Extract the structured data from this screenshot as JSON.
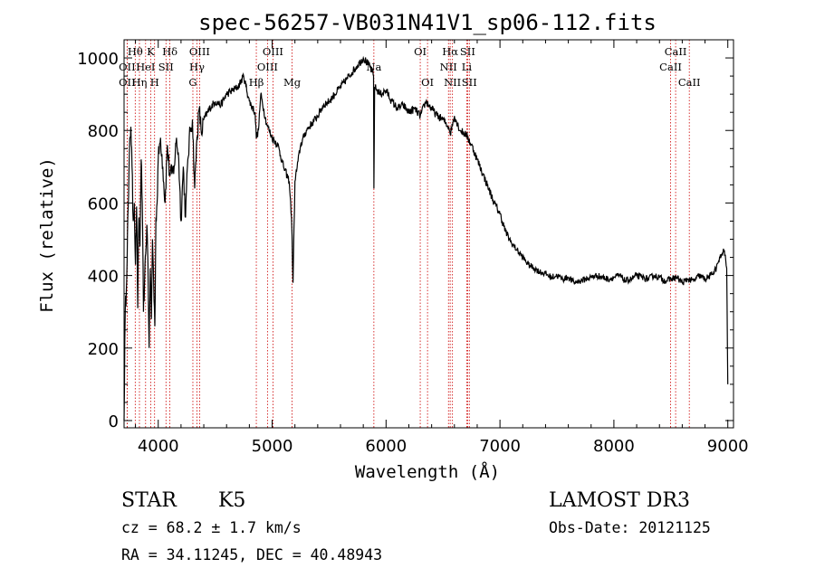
{
  "chart_data": {
    "type": "line",
    "title": "spec-56257-VB031N41V1_sp06-112.fits",
    "xlabel": "Wavelength (Å)",
    "ylabel": "Flux (relative)",
    "xlim": [
      3700,
      9050
    ],
    "ylim": [
      -20,
      1050
    ],
    "xticks": [
      4000,
      5000,
      6000,
      7000,
      8000,
      9000
    ],
    "yticks": [
      0,
      200,
      400,
      600,
      800,
      1000
    ],
    "series": [
      {
        "x": [
          3700,
          3710,
          3720,
          3730,
          3740,
          3750,
          3760,
          3770,
          3780,
          3790,
          3800,
          3810,
          3820,
          3830,
          3840,
          3850,
          3860,
          3870,
          3880,
          3890,
          3900,
          3910,
          3920,
          3930,
          3940,
          3950,
          3960,
          3970,
          3980,
          3990,
          4000,
          4020,
          4040,
          4060,
          4080,
          4100,
          4120,
          4140,
          4160,
          4180,
          4200,
          4220,
          4240,
          4260,
          4280,
          4300,
          4320,
          4340,
          4360,
          4380,
          4400,
          4450,
          4500,
          4550,
          4600,
          4650,
          4700,
          4750,
          4800,
          4850,
          4861,
          4880,
          4900,
          4950,
          5000,
          5050,
          5100,
          5150,
          5170,
          5183,
          5200,
          5250,
          5300,
          5350,
          5400,
          5450,
          5500,
          5550,
          5600,
          5650,
          5700,
          5750,
          5800,
          5850,
          5880,
          5890,
          5893,
          5900,
          5950,
          6000,
          6050,
          6100,
          6150,
          6200,
          6250,
          6300,
          6350,
          6400,
          6450,
          6500,
          6550,
          6563,
          6600,
          6650,
          6700,
          6750,
          6800,
          6850,
          6900,
          6950,
          7000,
          7050,
          7100,
          7150,
          7200,
          7250,
          7300,
          7350,
          7400,
          7450,
          7500,
          7550,
          7600,
          7650,
          7700,
          7750,
          7800,
          7850,
          7900,
          7950,
          8000,
          8050,
          8100,
          8150,
          8200,
          8250,
          8300,
          8350,
          8400,
          8450,
          8500,
          8550,
          8600,
          8650,
          8700,
          8750,
          8800,
          8850,
          8900,
          8920,
          8950,
          8970,
          8990,
          9000
        ],
        "y": [
          0,
          300,
          360,
          520,
          620,
          780,
          810,
          700,
          550,
          600,
          430,
          590,
          310,
          560,
          480,
          720,
          600,
          300,
          380,
          460,
          540,
          430,
          200,
          420,
          280,
          500,
          380,
          260,
          560,
          600,
          720,
          780,
          700,
          600,
          760,
          680,
          680,
          700,
          780,
          720,
          550,
          700,
          560,
          720,
          800,
          830,
          640,
          780,
          860,
          790,
          830,
          860,
          880,
          870,
          900,
          910,
          920,
          950,
          880,
          850,
          780,
          800,
          900,
          820,
          780,
          760,
          700,
          660,
          560,
          380,
          660,
          760,
          800,
          820,
          840,
          870,
          880,
          900,
          920,
          940,
          960,
          980,
          1000,
          980,
          960,
          950,
          640,
          920,
          900,
          910,
          880,
          860,
          870,
          850,
          860,
          840,
          880,
          860,
          840,
          830,
          810,
          790,
          840,
          800,
          790,
          760,
          720,
          680,
          640,
          600,
          570,
          520,
          490,
          470,
          450,
          430,
          420,
          410,
          405,
          395,
          400,
          390,
          395,
          380,
          385,
          390,
          395,
          400,
          395,
          390,
          395,
          400,
          385,
          390,
          400,
          395,
          390,
          400,
          395,
          385,
          390,
          395,
          380,
          390,
          385,
          400,
          390,
          400,
          420,
          440,
          460,
          470,
          420,
          100
        ]
      }
    ],
    "spectral_lines": [
      {
        "label": "Hθ",
        "x": 3798,
        "row": 0
      },
      {
        "label": "K",
        "x": 3934,
        "row": 0
      },
      {
        "label": "Hδ",
        "x": 4102,
        "row": 0
      },
      {
        "label": "OIII",
        "x": 4363,
        "row": 0
      },
      {
        "label": "OIII",
        "x": 5007,
        "row": 0
      },
      {
        "label": "OI",
        "x": 6300,
        "row": 0
      },
      {
        "label": "Hα",
        "x": 6563,
        "row": 0
      },
      {
        "label": "SII",
        "x": 6716,
        "row": 0
      },
      {
        "label": "CaII",
        "x": 8542,
        "row": 0
      },
      {
        "label": "OII",
        "x": 3727,
        "row": 1
      },
      {
        "label": "HeI",
        "x": 3889,
        "row": 1
      },
      {
        "label": "SII",
        "x": 4068,
        "row": 1
      },
      {
        "label": "Hγ",
        "x": 4340,
        "row": 1
      },
      {
        "label": "OIII",
        "x": 4959,
        "row": 1
      },
      {
        "label": "Na",
        "x": 5893,
        "row": 1
      },
      {
        "label": "NII",
        "x": 6548,
        "row": 1
      },
      {
        "label": "Li",
        "x": 6708,
        "row": 1
      },
      {
        "label": "CaII",
        "x": 8498,
        "row": 1
      },
      {
        "label": "OII",
        "x": 3727,
        "row": 2
      },
      {
        "label": "Hη",
        "x": 3835,
        "row": 2
      },
      {
        "label": "H",
        "x": 3968,
        "row": 2
      },
      {
        "label": "G",
        "x": 4304,
        "row": 2
      },
      {
        "label": "Hβ",
        "x": 4861,
        "row": 2
      },
      {
        "label": "Mg",
        "x": 5175,
        "row": 2
      },
      {
        "label": "OI",
        "x": 6364,
        "row": 2
      },
      {
        "label": "NII",
        "x": 6583,
        "row": 2
      },
      {
        "label": "SII",
        "x": 6731,
        "row": 2
      },
      {
        "label": "CaII",
        "x": 8662,
        "row": 2
      }
    ],
    "line_color": "#000000",
    "marker_color": "#cc0000"
  },
  "info": {
    "object_type": "STAR",
    "subclass": "K5",
    "survey": "LAMOST DR3",
    "cz": "cz = 68.2 ± 1.7 km/s",
    "obs_date": "Obs-Date: 20121125",
    "coords": "RA =  34.11245, DEC =  40.48943"
  }
}
